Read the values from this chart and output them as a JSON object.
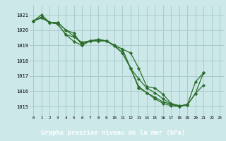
{
  "title": "Graphe pression niveau de la mer (hPa)",
  "bg_color": "#cce8e8",
  "grid_color": "#aacccc",
  "line_color": "#2d6e2d",
  "marker_color": "#2d6e2d",
  "footer_bg": "#2d6e2d",
  "footer_text_color": "#ffffff",
  "xlim": [
    -0.5,
    23.5
  ],
  "ylim": [
    1014.4,
    1021.6
  ],
  "yticks": [
    1015,
    1016,
    1017,
    1018,
    1019,
    1020,
    1021
  ],
  "xticks": [
    0,
    1,
    2,
    3,
    4,
    5,
    6,
    7,
    8,
    9,
    10,
    11,
    12,
    13,
    14,
    15,
    16,
    17,
    18,
    19,
    20,
    21,
    22,
    23
  ],
  "series": [
    [
      1020.6,
      1020.85,
      1020.5,
      1020.5,
      1020.0,
      1019.8,
      1019.0,
      1019.3,
      1019.3,
      1019.3,
      1019.0,
      1018.75,
      1018.5,
      1017.5,
      1016.3,
      1016.2,
      1015.8,
      1015.2,
      1015.05,
      1015.1,
      1016.6,
      1017.2,
      null,
      null
    ],
    [
      1020.6,
      1021.0,
      1020.5,
      1020.5,
      1020.0,
      1019.6,
      1019.1,
      1019.3,
      1019.4,
      1019.3,
      1019.0,
      1018.5,
      1017.5,
      1016.8,
      1016.2,
      1015.9,
      1015.5,
      1015.15,
      1015.0,
      1015.15,
      null,
      null,
      null,
      null
    ],
    [
      1020.6,
      1020.8,
      1020.5,
      1020.4,
      1019.7,
      1019.55,
      1019.2,
      1019.3,
      1019.3,
      1019.3,
      1019.0,
      1018.75,
      1017.5,
      1016.3,
      1015.9,
      1015.6,
      1015.3,
      1015.15,
      1015.05,
      1015.1,
      1015.85,
      1016.4,
      null,
      null
    ],
    [
      1020.6,
      1020.8,
      1020.5,
      1020.4,
      1019.7,
      1019.25,
      1019.0,
      1019.3,
      1019.3,
      1019.3,
      1018.95,
      1018.5,
      1017.5,
      1016.2,
      1015.9,
      1015.5,
      1015.2,
      1015.05,
      1015.0,
      1015.1,
      1015.85,
      1017.2,
      null,
      null
    ]
  ]
}
